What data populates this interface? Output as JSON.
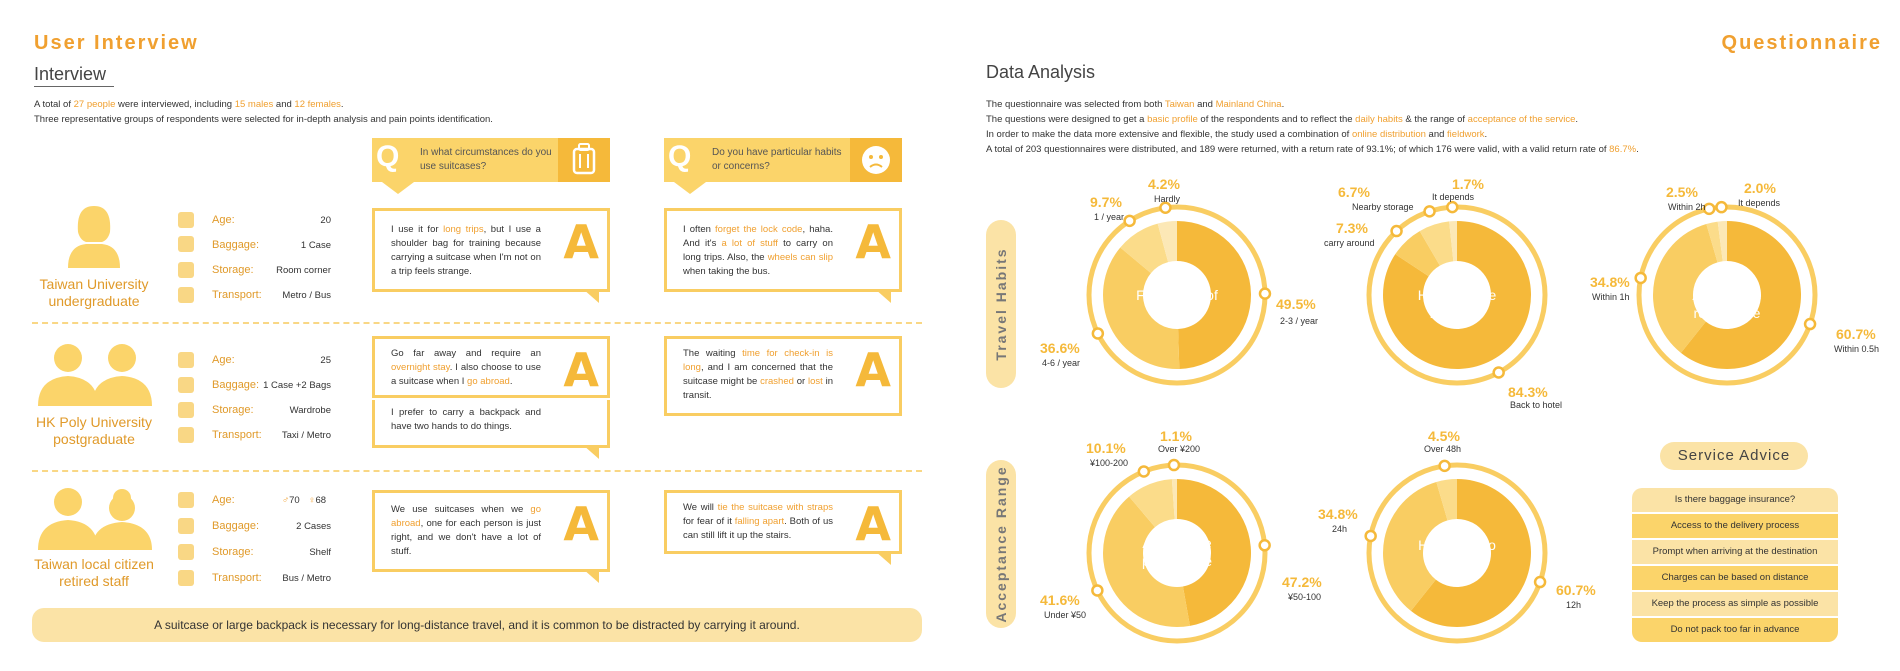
{
  "left": {
    "title": "User Interview",
    "subtitle": "Interview",
    "intro": {
      "l1_a": "A total of ",
      "l1_b": "27 people",
      "l1_c": " were interviewed, including ",
      "l1_d": "15 males",
      "l1_e": " and ",
      "l1_f": "12 females",
      "l1_g": ".",
      "l2": "Three representative groups of respondents were selected for in-depth analysis and pain points identification."
    },
    "questions": [
      {
        "q": "Q",
        "text": "In what circumstances do you use suitcases?",
        "icon": "suitcase-icon"
      },
      {
        "q": "Q",
        "text": "Do you have particular habits or concerns?",
        "icon": "worried-face-icon"
      }
    ],
    "profiles": [
      {
        "name": "Taiwan University undergraduate",
        "age": "20",
        "baggage": "1 Case",
        "storage": "Room corner",
        "transport": "Metro / Bus"
      },
      {
        "name": "HK Poly University postgraduate",
        "age": "25",
        "baggage": "1 Case +2 Bags",
        "storage": "Wardrobe",
        "transport": "Taxi / Metro"
      },
      {
        "name": "Taiwan local citizen retired staff",
        "age_m": "70",
        "age_f": "68",
        "baggage": "2 Cases",
        "storage": "Shelf",
        "transport": "Bus / Metro"
      }
    ],
    "labels": {
      "age": "Age:",
      "baggage": "Baggage:",
      "storage": "Storage:",
      "transport": "Transport:",
      "answer": "A"
    },
    "answers": {
      "a1": {
        "t1": "I use it for ",
        "t2": "long trips",
        "t3": ", but I use a shoulder bag for training because carrying a suitcase when I'm not on a trip feels strange."
      },
      "a2": {
        "t1": "I often ",
        "t2": "forget the lock code",
        "t3": ", haha. And it's ",
        "t4": "a lot of stuff",
        "t5": " to carry on long trips. Also, the ",
        "t6": "wheels can slip",
        "t7": " when taking the bus."
      },
      "a3": {
        "t1": "Go far away and require an ",
        "t2": "overnight stay",
        "t3": ". I also choose to use a suitcase when I ",
        "t4": "go abroad",
        "t5": "."
      },
      "a3b": "I prefer to carry a backpack and have two hands to do things.",
      "a4": {
        "t1": "The waiting ",
        "t2": "time for check-in is long",
        "t3": ", and I am concerned that the suitcase might be ",
        "t4": "crashed",
        "t5": " or ",
        "t6": "lost",
        "t7": " in transit."
      },
      "a5": {
        "t1": "We use suitcases when we ",
        "t2": "go abroad",
        "t3": ", one for each person is just right, and we don't have a lot of stuff."
      },
      "a6": {
        "t1": "We will ",
        "t2": "tie the suitcase with straps",
        "t3": " for fear of it ",
        "t4": "falling apart",
        "t5": ". Both of us can still lift it up the stairs."
      }
    },
    "conclusion": "A suitcase or large backpack is necessary for long-distance travel, and it is common to be distracted by carrying it around."
  },
  "right": {
    "title": "Questionnaire",
    "subtitle": "Data Analysis",
    "intro": {
      "l1_a": "The questionnaire was selected from both ",
      "l1_b": "Taiwan",
      "l1_c": " and ",
      "l1_d": "Mainland China",
      "l1_e": ".",
      "l2_a": "The questions were designed to get a ",
      "l2_b": "basic profile",
      "l2_c": " of the respondents and to reflect the ",
      "l2_d": "daily habits",
      "l2_e": " & the range of ",
      "l2_f": "acceptance of the service",
      "l2_g": ".",
      "l3_a": "In order to make the data more extensive and flexible, the study used a combination of ",
      "l3_b": "online distribution",
      "l3_c": " and ",
      "l3_d": "fieldwork",
      "l3_e": ".",
      "l4_a": "A total of 203 questionnaires were distributed, and 189 were returned, with a return rate of 93.1%; of which 176 were valid, with a valid return rate of ",
      "l4_b": "86.7%",
      "l4_c": "."
    },
    "pill_travel": "Travel Habits",
    "pill_accept": "Acceptance Range",
    "service_title": "Service Advice",
    "advice": [
      "Is there baggage insurance?",
      "Access to the delivery process",
      "Prompt when arriving at the destination",
      "Charges can be based on distance",
      "Keep the process as simple as possible",
      "Do not pack too far in advance"
    ]
  },
  "chart_data": [
    {
      "type": "pie",
      "title": "Frequency of long trip",
      "categories": [
        "2-3 / year",
        "4-6 / year",
        "1 / year",
        "Hardly"
      ],
      "values": [
        49.5,
        36.6,
        9.7,
        4.2
      ],
      "labels": [
        "49.5%",
        "36.6%",
        "9.7%",
        "4.2%"
      ]
    },
    {
      "type": "pie",
      "title": "How to store baggage",
      "categories": [
        "Back to hotel",
        "carry around",
        "Nearby storage",
        "It depends"
      ],
      "values": [
        84.3,
        7.3,
        6.7,
        1.7
      ],
      "labels": [
        "84.3%",
        "7.3%",
        "6.7%",
        "1.7%"
      ]
    },
    {
      "type": "pie",
      "title": "Acceptable return time",
      "categories": [
        "Within 0.5h",
        "Within 1h",
        "Within 2h",
        "It depends"
      ],
      "values": [
        60.7,
        34.8,
        2.5,
        2.0
      ],
      "labels": [
        "60.7%",
        "34.8%",
        "2.5%",
        "2.0%"
      ]
    },
    {
      "type": "pie",
      "title": "Acceptable price range",
      "categories": [
        "¥50-100",
        "Under ¥50",
        "¥100-200",
        "Over ¥200"
      ],
      "values": [
        47.2,
        41.6,
        10.1,
        1.1
      ],
      "labels": [
        "47.2%",
        "41.6%",
        "10.1%",
        "1.1%"
      ]
    },
    {
      "type": "pie",
      "title": "How early to pack",
      "categories": [
        "12h",
        "24h",
        "Over 48h"
      ],
      "values": [
        60.7,
        34.8,
        4.5
      ],
      "labels": [
        "60.7%",
        "34.8%",
        "4.5%"
      ]
    }
  ],
  "colors": {
    "accent": "#f0a030",
    "yellow_dark": "#f5b93a",
    "yellow_mid": "#fbd46a",
    "yellow_light": "#fbe3a6"
  }
}
